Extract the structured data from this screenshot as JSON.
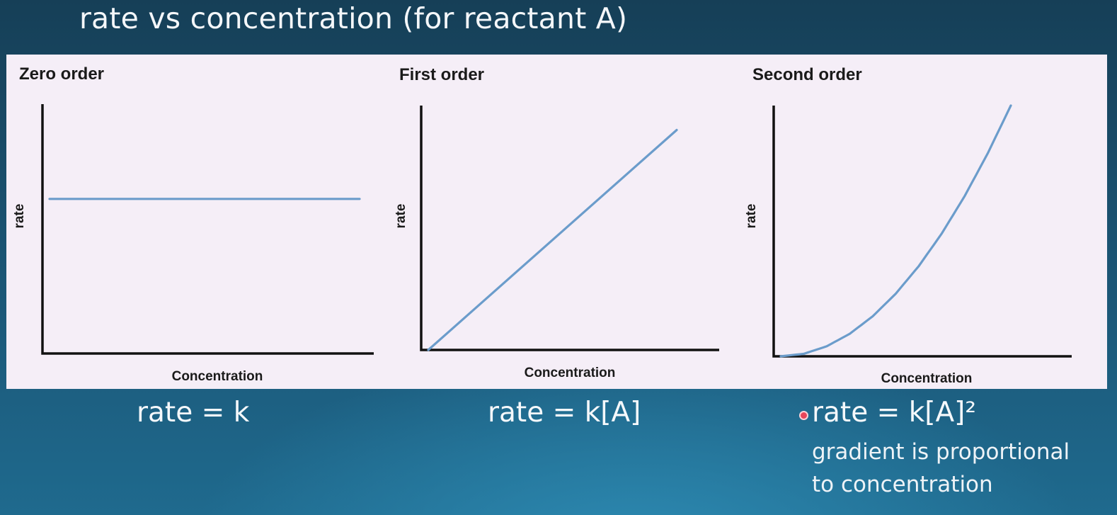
{
  "slide": {
    "title": "rate vs concentration (for reactant A)"
  },
  "equations": {
    "zero": "rate = k",
    "first": "rate = k[A]",
    "second": "rate = k[A]²"
  },
  "notes": {
    "line1": "gradient is proportional",
    "line2": "to concentration"
  },
  "colors": {
    "series": "#6b9ccb",
    "panel": "#f5eef7",
    "pointer": "#e8455a"
  },
  "chart_data": [
    {
      "type": "line",
      "title": "Zero order",
      "xlabel": "Concentration",
      "ylabel": "rate",
      "xlim": [
        0,
        1
      ],
      "ylim": [
        0,
        1
      ],
      "grid": false,
      "x": [
        0,
        1
      ],
      "series": [
        {
          "values": [
            0.62,
            0.62
          ]
        }
      ]
    },
    {
      "type": "line",
      "title": "First order",
      "xlabel": "Concentration",
      "ylabel": "rate",
      "xlim": [
        0,
        1
      ],
      "ylim": [
        0,
        1
      ],
      "grid": false,
      "x": [
        0,
        0.9
      ],
      "series": [
        {
          "values": [
            0,
            0.9
          ]
        }
      ]
    },
    {
      "type": "line",
      "title": "Second order",
      "xlabel": "Concentration",
      "ylabel": "rate",
      "xlim": [
        0,
        1
      ],
      "ylim": [
        0,
        1
      ],
      "grid": false,
      "x": [
        0,
        0.1,
        0.2,
        0.3,
        0.4,
        0.5,
        0.6,
        0.7,
        0.8,
        0.9,
        1.0
      ],
      "series": [
        {
          "values": [
            0,
            0.01,
            0.04,
            0.09,
            0.16,
            0.25,
            0.36,
            0.49,
            0.64,
            0.81,
            1.0
          ]
        }
      ]
    }
  ]
}
